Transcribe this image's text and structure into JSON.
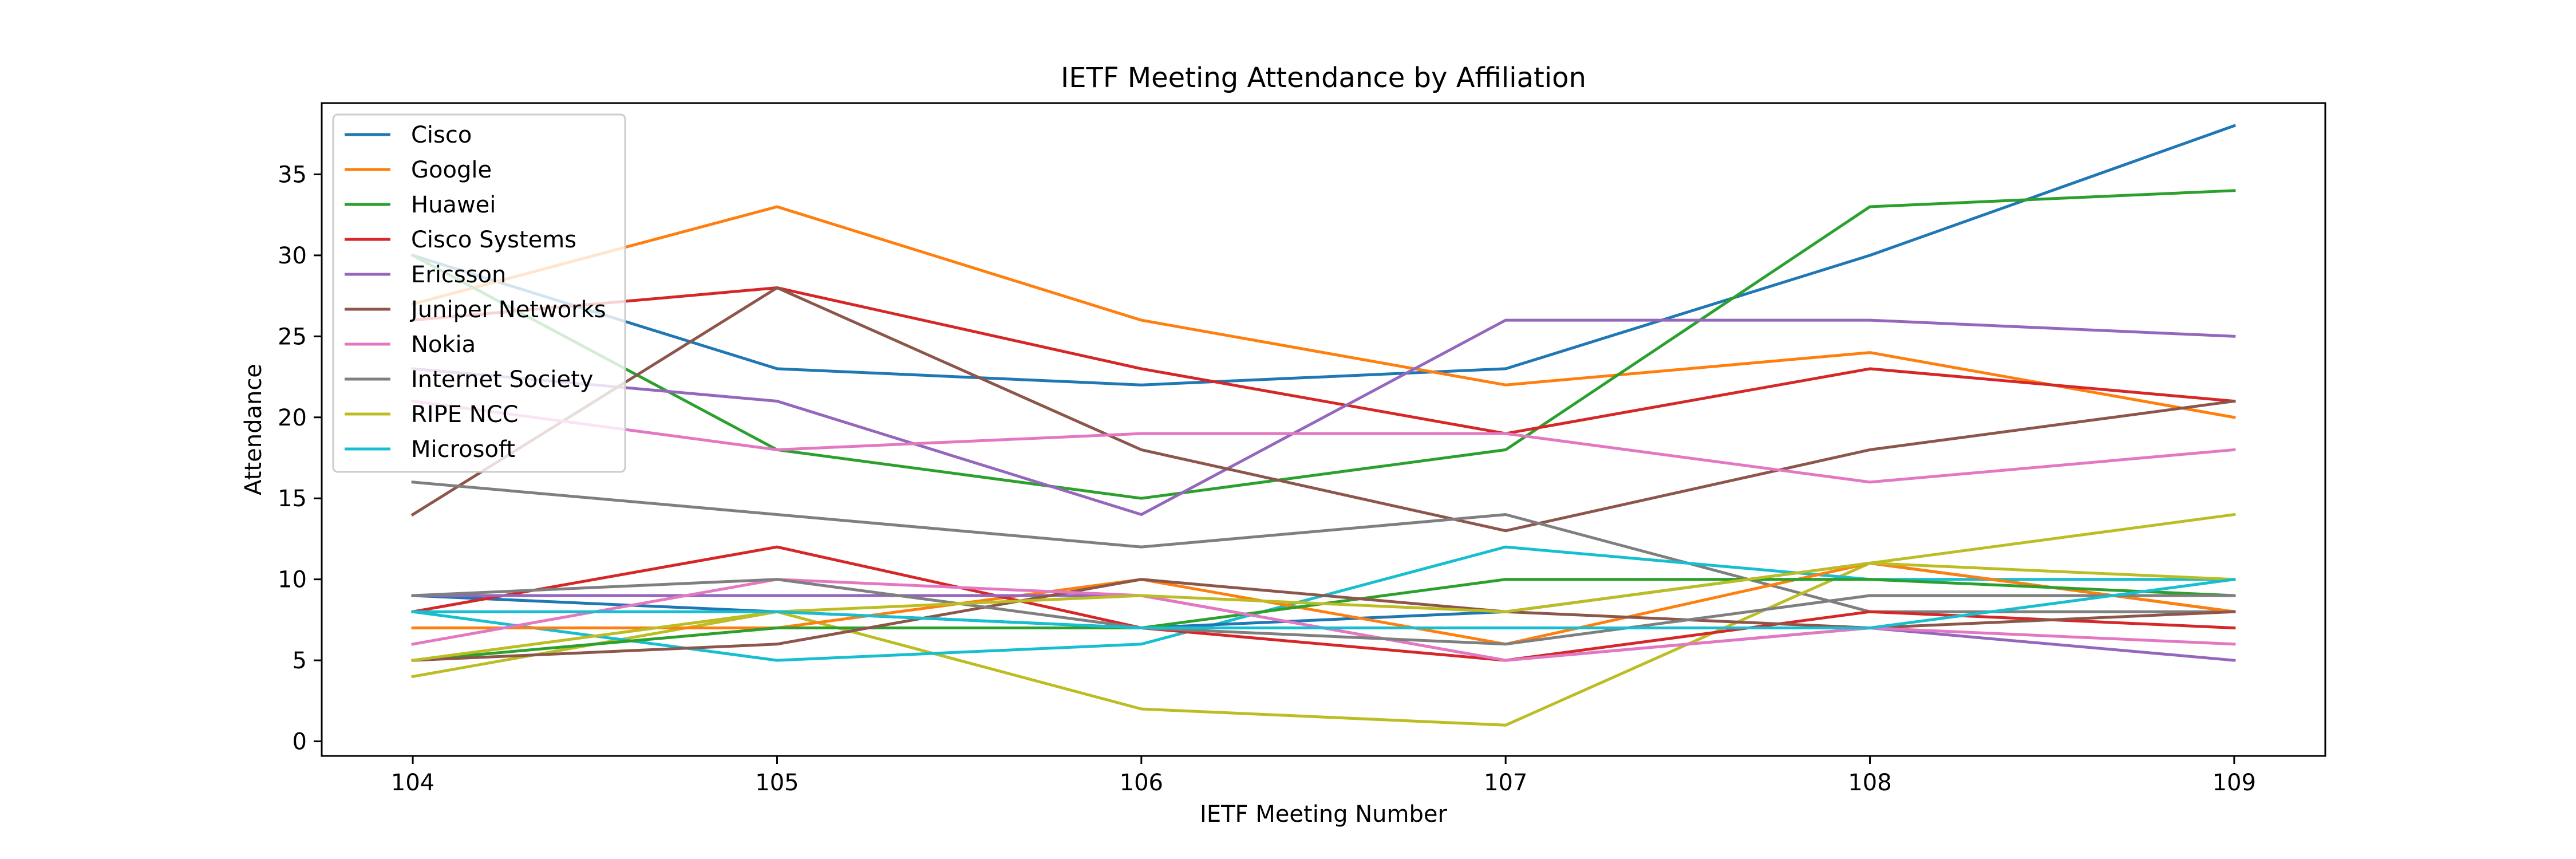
{
  "chart_data": {
    "type": "line",
    "title": "IETF Meeting Attendance by Affiliation",
    "xlabel": "IETF Meeting Number",
    "ylabel": "Attendance",
    "x": [
      104,
      105,
      106,
      107,
      108,
      109
    ],
    "xlim": [
      103.75,
      109.25
    ],
    "ylim": [
      -0.9,
      39.4
    ],
    "yticks": [
      0,
      5,
      10,
      15,
      20,
      25,
      30,
      35
    ],
    "grid": false,
    "legend_position": "upper-left",
    "series": [
      {
        "name": "Cisco",
        "color": "#1f77b4",
        "values": [
          30,
          23,
          22,
          23,
          30,
          38
        ]
      },
      {
        "name": "Google",
        "color": "#ff7f0e",
        "values": [
          27,
          33,
          26,
          22,
          24,
          20
        ]
      },
      {
        "name": "Huawei",
        "color": "#2ca02c",
        "values": [
          30,
          18,
          15,
          18,
          33,
          34
        ]
      },
      {
        "name": "Cisco Systems",
        "color": "#d62728",
        "values": [
          26,
          28,
          23,
          19,
          23,
          21
        ]
      },
      {
        "name": "Ericsson",
        "color": "#9467bd",
        "values": [
          23,
          21,
          14,
          26,
          26,
          25
        ]
      },
      {
        "name": "Juniper Networks",
        "color": "#8c564b",
        "values": [
          14,
          28,
          18,
          13,
          18,
          21
        ]
      },
      {
        "name": "Nokia",
        "color": "#e377c2",
        "values": [
          21,
          18,
          19,
          19,
          16,
          18
        ]
      },
      {
        "name": "Internet Society",
        "color": "#7f7f7f",
        "values": [
          16,
          14,
          12,
          14,
          8,
          8
        ]
      },
      {
        "name": "RIPE NCC",
        "color": "#bcbd22",
        "values": [
          4,
          8,
          2,
          1,
          11,
          14
        ]
      },
      {
        "name": "Microsoft",
        "color": "#17becf",
        "values": [
          8,
          5,
          6,
          12,
          10,
          10
        ]
      },
      {
        "name": "",
        "color": "#1f77b4",
        "values": [
          9,
          8,
          7,
          8,
          11,
          8
        ]
      },
      {
        "name": "",
        "color": "#ff7f0e",
        "values": [
          7,
          7,
          10,
          6,
          11,
          8
        ]
      },
      {
        "name": "",
        "color": "#2ca02c",
        "values": [
          5,
          7,
          7,
          10,
          10,
          9
        ]
      },
      {
        "name": "",
        "color": "#d62728",
        "values": [
          8,
          12,
          7,
          5,
          8,
          7
        ]
      },
      {
        "name": "",
        "color": "#9467bd",
        "values": [
          9,
          9,
          9,
          5,
          7,
          5
        ]
      },
      {
        "name": "",
        "color": "#8c564b",
        "values": [
          5,
          6,
          10,
          8,
          7,
          8
        ]
      },
      {
        "name": "",
        "color": "#e377c2",
        "values": [
          6,
          10,
          9,
          5,
          7,
          6
        ]
      },
      {
        "name": "",
        "color": "#7f7f7f",
        "values": [
          9,
          10,
          7,
          6,
          9,
          9
        ]
      },
      {
        "name": "",
        "color": "#bcbd22",
        "values": [
          5,
          8,
          9,
          8,
          11,
          10
        ]
      },
      {
        "name": "",
        "color": "#17becf",
        "values": [
          8,
          8,
          7,
          7,
          7,
          10
        ]
      }
    ]
  }
}
